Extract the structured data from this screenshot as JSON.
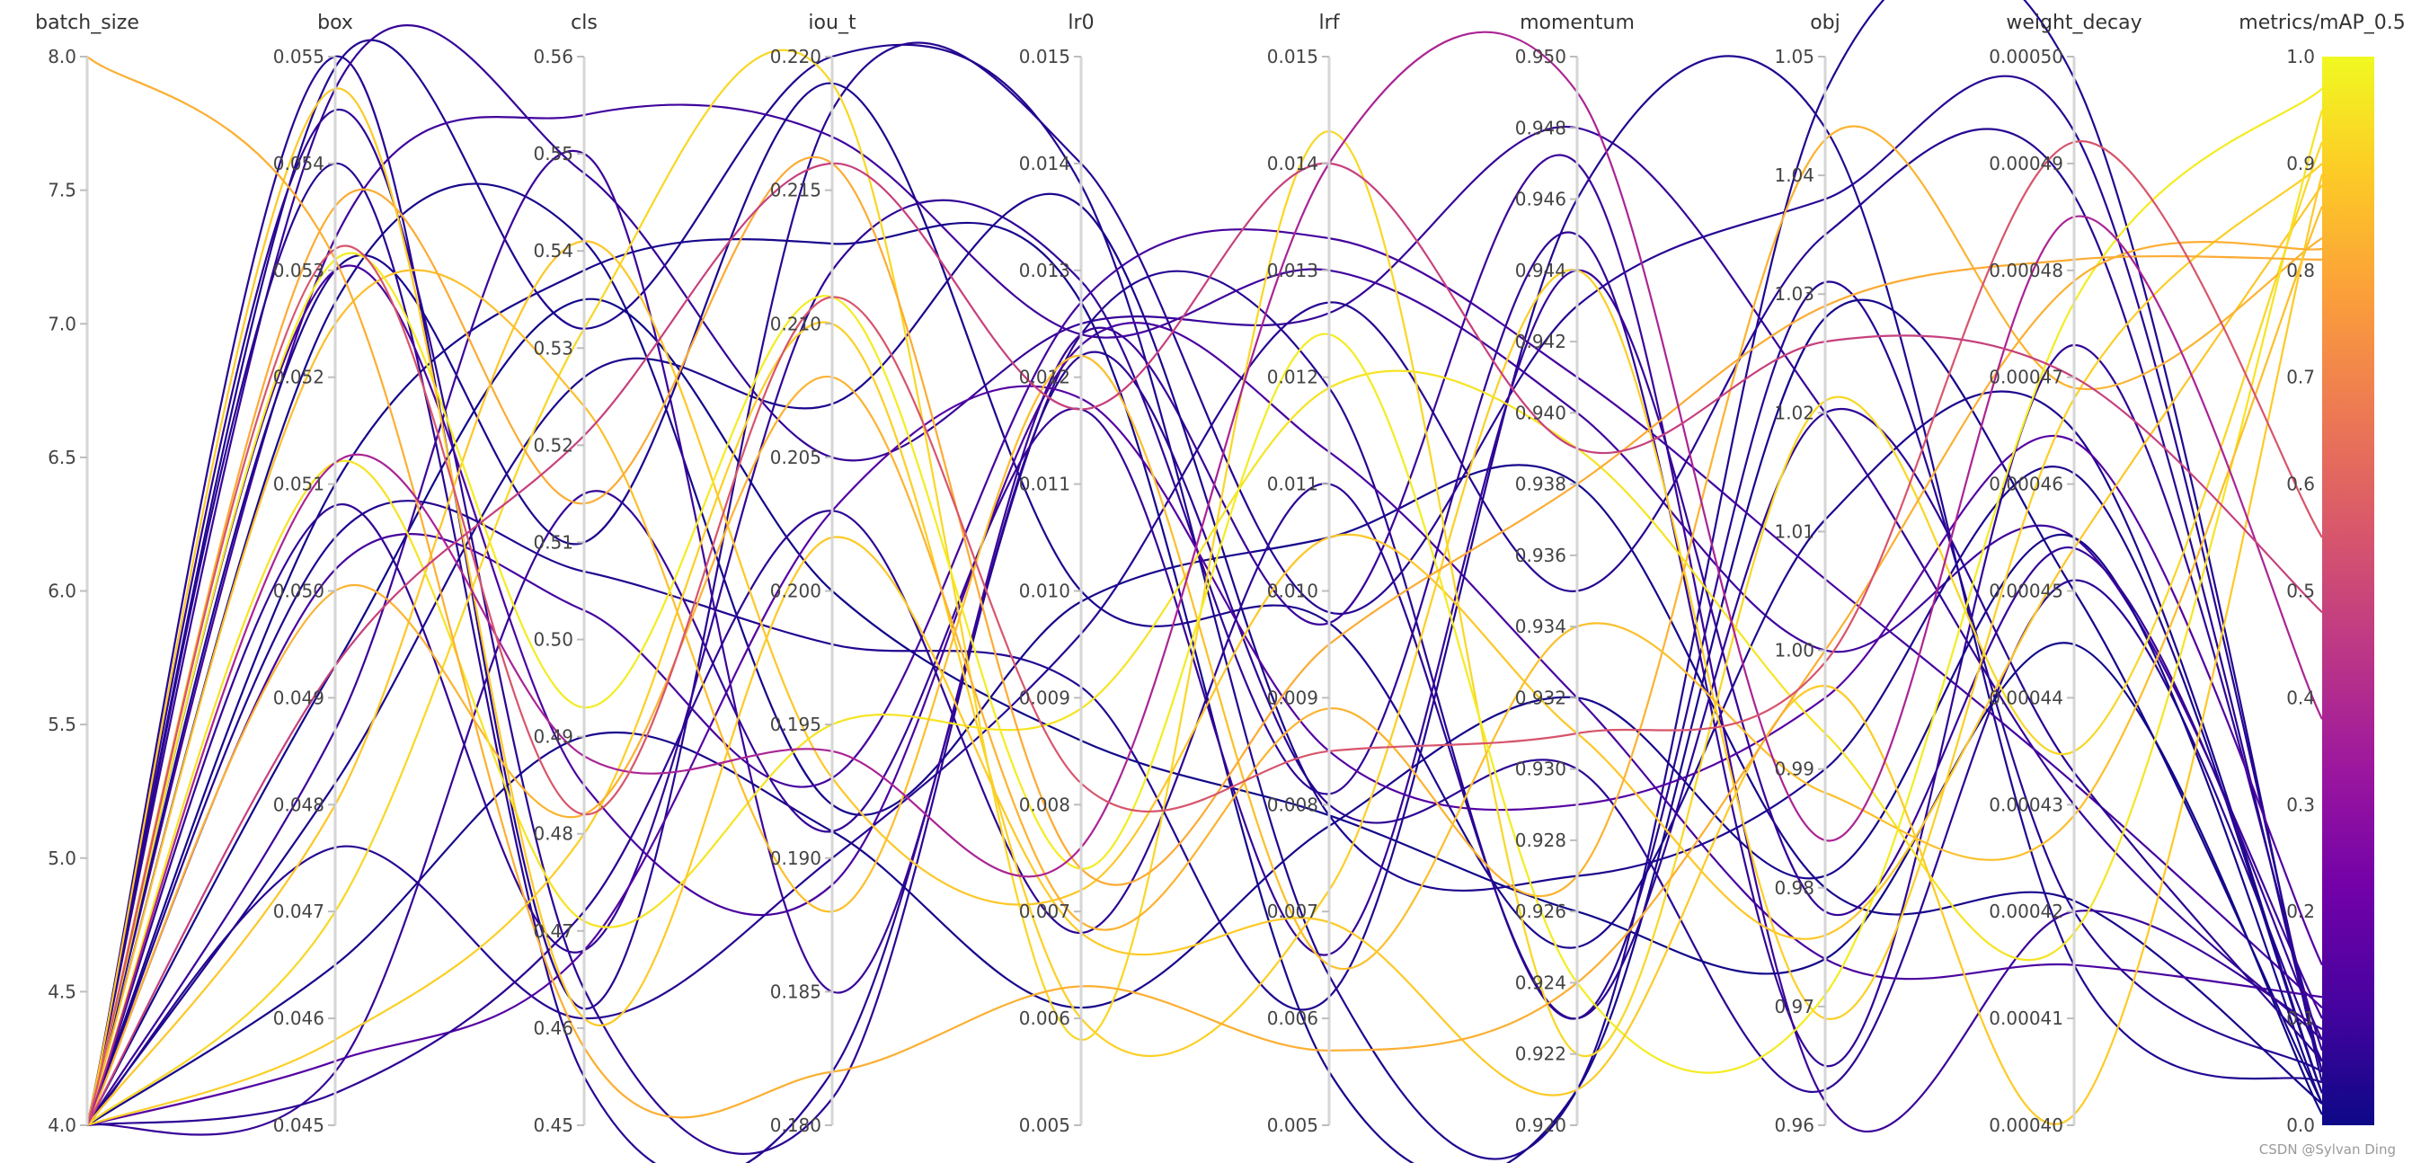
{
  "chart_data": {
    "type": "parallel_coordinates",
    "axes": [
      {
        "name": "batch_size",
        "range": [
          4.0,
          8.0
        ],
        "ticks": [
          "4.0",
          "4.5",
          "5.0",
          "5.5",
          "6.0",
          "6.5",
          "7.0",
          "7.5",
          "8.0"
        ]
      },
      {
        "name": "box",
        "range": [
          0.045,
          0.055
        ],
        "ticks": [
          "0.045",
          "0.046",
          "0.047",
          "0.048",
          "0.049",
          "0.050",
          "0.051",
          "0.052",
          "0.053",
          "0.054",
          "0.055"
        ]
      },
      {
        "name": "cls",
        "range": [
          0.45,
          0.56
        ],
        "ticks": [
          "0.45",
          "0.46",
          "0.47",
          "0.48",
          "0.49",
          "0.50",
          "0.51",
          "0.52",
          "0.53",
          "0.54",
          "0.55",
          "0.56"
        ]
      },
      {
        "name": "iou_t",
        "range": [
          0.18,
          0.22
        ],
        "ticks": [
          "0.180",
          "0.185",
          "0.190",
          "0.195",
          "0.200",
          "0.205",
          "0.210",
          "0.215",
          "0.220"
        ]
      },
      {
        "name": "lr0",
        "range": [
          0.005,
          0.015
        ],
        "ticks": [
          "0.005",
          "0.006",
          "0.007",
          "0.008",
          "0.009",
          "0.010",
          "0.011",
          "0.012",
          "0.013",
          "0.014",
          "0.015"
        ]
      },
      {
        "name": "lrf",
        "range": [
          0.005,
          0.015
        ],
        "ticks": [
          "0.005",
          "0.006",
          "0.007",
          "0.008",
          "0.009",
          "0.010",
          "0.011",
          "0.012",
          "0.013",
          "0.014",
          "0.015"
        ]
      },
      {
        "name": "momentum",
        "range": [
          0.92,
          0.95
        ],
        "ticks": [
          "0.920",
          "0.922",
          "0.924",
          "0.926",
          "0.928",
          "0.930",
          "0.932",
          "0.934",
          "0.936",
          "0.938",
          "0.940",
          "0.942",
          "0.944",
          "0.946",
          "0.948",
          "0.950"
        ]
      },
      {
        "name": "obj",
        "range": [
          0.96,
          1.05
        ],
        "ticks": [
          "0.96",
          "0.97",
          "0.98",
          "0.99",
          "1.00",
          "1.01",
          "1.02",
          "1.03",
          "1.04",
          "1.05"
        ]
      },
      {
        "name": "weight_decay",
        "range": [
          0.0004,
          0.0005
        ],
        "ticks": [
          "0.00040",
          "0.00041",
          "0.00042",
          "0.00043",
          "0.00044",
          "0.00045",
          "0.00046",
          "0.00047",
          "0.00048",
          "0.00049",
          "0.00050"
        ]
      },
      {
        "name": "metrics/mAP_0.5",
        "range": [
          0.0,
          1.0
        ],
        "ticks": [
          "0.0",
          "0.1",
          "0.2",
          "0.3",
          "0.4",
          "0.5",
          "0.6",
          "0.7",
          "0.8",
          "0.9",
          "1.0"
        ]
      }
    ],
    "colorscale": {
      "name": "plasma",
      "stops": [
        "#0d0887",
        "#46039f",
        "#7201a8",
        "#9c179e",
        "#bd3786",
        "#d8576b",
        "#ed7953",
        "#fb9f3a",
        "#fdca26",
        "#f0f921"
      ]
    },
    "traces": [
      [
        4.0,
        0.055,
        0.462,
        0.218,
        0.014,
        0.0098,
        0.943,
        1.038,
        0.000493,
        0.05
      ],
      [
        4.0,
        0.0549,
        0.532,
        0.22,
        0.0138,
        0.0064,
        0.921,
        1.047,
        0.000498,
        0.04
      ],
      [
        4.0,
        0.0547,
        0.548,
        0.205,
        0.0125,
        0.0126,
        0.948,
        1.02,
        0.00043,
        0.08
      ],
      [
        4.0,
        0.0545,
        0.464,
        0.181,
        0.0122,
        0.008,
        0.93,
        0.963,
        0.000451,
        0.06
      ],
      [
        4.0,
        0.054,
        0.455,
        0.182,
        0.0124,
        0.0119,
        0.923,
        1.031,
        0.00042,
        0.05
      ],
      [
        4.0,
        0.0533,
        0.554,
        0.217,
        0.0124,
        0.013,
        0.94,
        1.0,
        0.000455,
        0.1
      ],
      [
        4.0,
        0.053,
        0.51,
        0.219,
        0.01,
        0.0097,
        0.925,
        1.011,
        0.000465,
        0.03
      ],
      [
        4.0,
        0.0527,
        0.541,
        0.192,
        0.0099,
        0.0105,
        0.938,
        0.98,
        0.000421,
        0.02
      ],
      [
        4.0,
        0.053,
        0.485,
        0.189,
        0.0123,
        0.0113,
        0.932,
        0.974,
        0.000415,
        0.12
      ],
      [
        4.0,
        0.051,
        0.538,
        0.213,
        0.0127,
        0.0055,
        0.921,
        1.028,
        0.00045,
        0.02
      ],
      [
        4.0,
        0.0508,
        0.468,
        0.212,
        0.0129,
        0.0081,
        0.945,
        0.965,
        0.000473,
        0.07
      ],
      [
        4.0,
        0.0505,
        0.507,
        0.198,
        0.0091,
        0.0062,
        0.946,
        1.044,
        0.000415,
        0.04
      ],
      [
        4.0,
        0.0502,
        0.503,
        0.193,
        0.0127,
        0.0133,
        0.941,
        1.006,
        0.000432,
        0.11
      ],
      [
        4.0,
        0.0493,
        0.535,
        0.2,
        0.0086,
        0.0079,
        0.926,
        0.974,
        0.000445,
        0.01
      ],
      [
        4.0,
        0.0487,
        0.55,
        0.185,
        0.0124,
        0.0097,
        0.947,
        0.962,
        0.00042,
        0.09
      ],
      [
        4.0,
        0.0482,
        0.527,
        0.207,
        0.0136,
        0.0079,
        0.927,
        0.99,
        0.000461,
        0.03
      ],
      [
        4.0,
        0.0476,
        0.461,
        0.19,
        0.0096,
        0.0127,
        0.935,
        1.035,
        0.000487,
        0.05
      ],
      [
        4.0,
        0.0465,
        0.49,
        0.191,
        0.0061,
        0.0078,
        0.932,
        0.981,
        0.000455,
        0.02
      ],
      [
        4.0,
        0.0456,
        0.468,
        0.203,
        0.0118,
        0.0085,
        0.929,
        0.996,
        0.000464,
        0.15
      ],
      [
        4.0,
        0.0455,
        0.515,
        0.191,
        0.0117,
        0.0066,
        0.944,
        0.978,
        0.000454,
        0.08
      ],
      [
        4.0,
        0.0453,
        0.472,
        0.203,
        0.0068,
        0.011,
        0.923,
        1.02,
        0.000433,
        0.06
      ],
      [
        4.0,
        0.0458,
        0.48,
        0.21,
        0.006,
        0.0072,
        0.944,
        0.969,
        0.000468,
        0.9
      ],
      [
        4.0,
        0.047,
        0.532,
        0.219,
        0.0058,
        0.0143,
        0.922,
        1.021,
        0.000435,
        0.92
      ],
      [
        4.0,
        0.048,
        0.541,
        0.193,
        0.0072,
        0.0105,
        0.931,
        0.976,
        0.000454,
        0.88
      ],
      [
        4.0,
        0.05,
        0.482,
        0.208,
        0.0069,
        0.0089,
        0.927,
        1.043,
        0.000469,
        0.83
      ],
      [
        4.0,
        0.0512,
        0.471,
        0.195,
        0.0089,
        0.0119,
        0.939,
        0.993,
        0.000418,
        0.95
      ],
      [
        4.0,
        0.0525,
        0.524,
        0.188,
        0.0122,
        0.0065,
        0.934,
        0.988,
        0.000429,
        0.86
      ],
      [
        4.0,
        0.0531,
        0.493,
        0.211,
        0.0074,
        0.0124,
        0.924,
        0.971,
        0.000477,
        0.97
      ],
      [
        4.0,
        0.0536,
        0.514,
        0.216,
        0.0074,
        0.0095,
        0.938,
        1.029,
        0.000481,
        0.81
      ],
      [
        4.0,
        0.0547,
        0.461,
        0.202,
        0.0068,
        0.0069,
        0.921,
        0.997,
        0.000401,
        0.89
      ],
      [
        8.0,
        0.0531,
        0.458,
        0.182,
        0.0063,
        0.0057,
        0.924,
        1.0,
        0.000479,
        0.82
      ],
      [
        4.0,
        0.0512,
        0.488,
        0.194,
        0.0076,
        0.014,
        0.949,
        0.984,
        0.000485,
        0.38
      ],
      [
        4.0,
        0.0532,
        0.482,
        0.211,
        0.0082,
        0.0085,
        0.931,
        0.999,
        0.000492,
        0.55
      ],
      [
        4.0,
        0.0493,
        0.521,
        0.216,
        0.0117,
        0.014,
        0.939,
        1.026,
        0.00047,
        0.48
      ]
    ],
    "watermark": "CSDN @Sylvan Ding"
  }
}
